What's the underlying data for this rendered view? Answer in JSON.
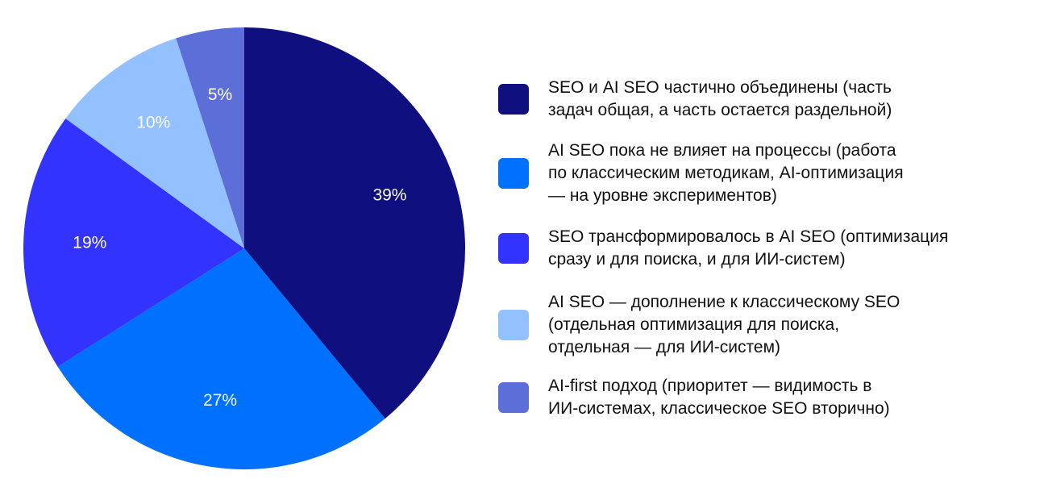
{
  "chart_data": {
    "type": "pie",
    "series": [
      {
        "name": "SEO и AI SEO частично объединены (часть\nзадач общая, а часть остается раздельной)",
        "color": "#0f0f80"
      },
      {
        "name": "AI SEO пока не влияет на процессы (работа\nпо классическим методикам, AI-оптимизация\n— на уровне экспериментов)",
        "color": "#0070ff"
      },
      {
        "name": "SEO трансформировалось в AI SEO (оптимизация\nсразу и для поиска, и для ИИ-систем)",
        "color": "#3333ff"
      },
      {
        "name": "AI SEO — дополнение к классическому SEO\n(отдельная оптимизация для поиска,\nотдельная — для ИИ-систем)",
        "color": "#93c1ff"
      },
      {
        "name": "AI-first подход (приоритет — видимость в\nИИ-системах, классическое SEO вторично)",
        "color": "#5c6ed8"
      }
    ],
    "values": [
      39,
      27,
      19,
      10,
      5
    ],
    "value_labels": [
      "39%",
      "27%",
      "19%",
      "10%",
      "5%"
    ]
  }
}
